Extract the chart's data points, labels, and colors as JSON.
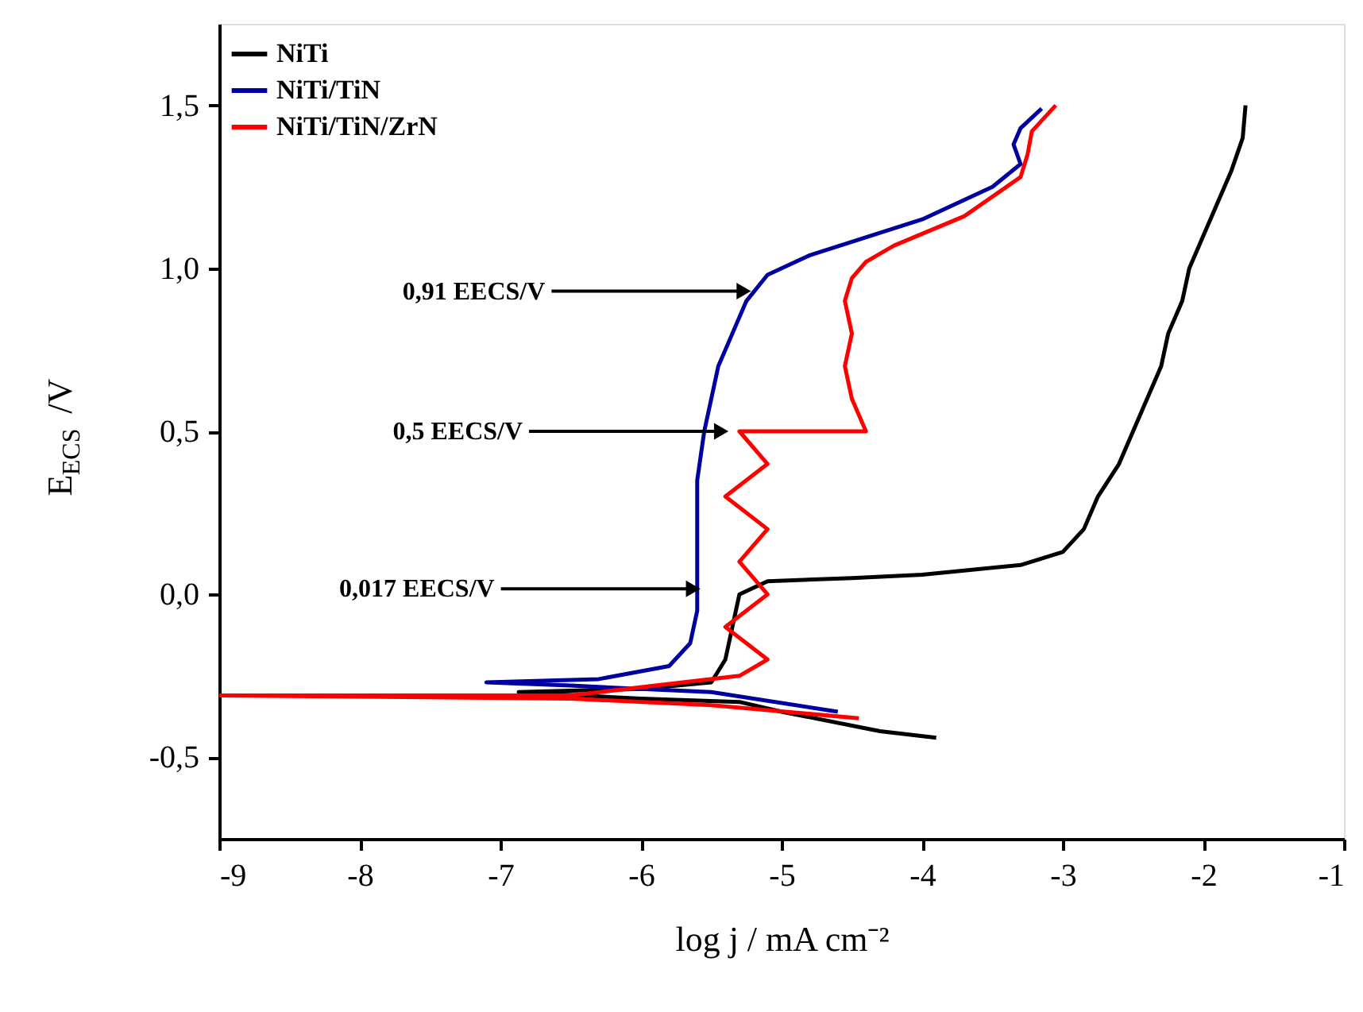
{
  "chart_data": {
    "type": "line",
    "xlabel": "log j / mA cm⁻²",
    "ylabel": "E$_{ECS}$ /V",
    "xlim": [
      -9,
      -1
    ],
    "xticks": [
      -9,
      -8,
      -7,
      -6,
      -5,
      -4,
      -3,
      -2,
      -1
    ],
    "ylim": [
      -0.75,
      1.75
    ],
    "yticks": [
      {
        "value": -0.5,
        "label": "-0,5"
      },
      {
        "value": 0,
        "label": "0,0"
      },
      {
        "value": 0.5,
        "label": "0,5"
      },
      {
        "value": 1,
        "label": "1,0"
      },
      {
        "value": 1.5,
        "label": "1,5"
      }
    ],
    "grid": false,
    "legend": "top left",
    "series": [
      {
        "name": "NiTi",
        "color": "#000000",
        "x": [
          -3.9,
          -4.3,
          -5.0,
          -5.3,
          -6.0,
          -6.87,
          -6.0,
          -5.5,
          -5.4,
          -5.35,
          -5.3,
          -5.1,
          -4.5,
          -4.0,
          -3.3,
          -3.0,
          -2.85,
          -2.75,
          -2.6,
          -2.5,
          -2.4,
          -2.3,
          -2.25,
          -2.15,
          -2.1,
          -2.0,
          -1.9,
          -1.8,
          -1.72,
          -1.7
        ],
        "values": [
          -0.44,
          -0.42,
          -0.36,
          -0.33,
          -0.32,
          -0.3,
          -0.29,
          -0.27,
          -0.2,
          -0.1,
          0.0,
          0.04,
          0.05,
          0.06,
          0.09,
          0.13,
          0.2,
          0.3,
          0.4,
          0.5,
          0.6,
          0.7,
          0.8,
          0.9,
          1.0,
          1.1,
          1.2,
          1.3,
          1.4,
          1.5
        ]
      },
      {
        "name": "NiTi/TiN",
        "color": "#0000a0",
        "x": [
          -4.6,
          -5.5,
          -6.5,
          -7.1,
          -6.3,
          -5.8,
          -5.65,
          -5.6,
          -5.6,
          -5.6,
          -5.6,
          -5.55,
          -5.5,
          -5.45,
          -5.35,
          -5.25,
          -5.1,
          -4.8,
          -4.0,
          -3.5,
          -3.3,
          -3.35,
          -3.3,
          -3.15
        ],
        "values": [
          -0.36,
          -0.3,
          -0.28,
          -0.27,
          -0.26,
          -0.22,
          -0.15,
          -0.05,
          0.05,
          0.2,
          0.35,
          0.5,
          0.6,
          0.7,
          0.8,
          0.9,
          0.98,
          1.04,
          1.15,
          1.25,
          1.32,
          1.38,
          1.43,
          1.49
        ]
      },
      {
        "name": "NiTi/TiN/ZrN",
        "color": "#ff0000",
        "x": [
          -4.45,
          -5.5,
          -6.5,
          -9.0,
          -6.5,
          -5.3,
          -5.1,
          -5.4,
          -5.1,
          -5.3,
          -5.1,
          -5.4,
          -5.1,
          -5.3,
          -4.4,
          -4.5,
          -4.55,
          -4.5,
          -4.55,
          -4.5,
          -4.4,
          -4.2,
          -3.7,
          -3.3,
          -3.25,
          -3.22,
          -3.05
        ],
        "values": [
          -0.38,
          -0.34,
          -0.32,
          -0.31,
          -0.31,
          -0.25,
          -0.2,
          -0.1,
          0.0,
          0.1,
          0.2,
          0.3,
          0.4,
          0.5,
          0.5,
          0.6,
          0.7,
          0.8,
          0.9,
          0.97,
          1.02,
          1.07,
          1.16,
          1.28,
          1.35,
          1.42,
          1.5
        ]
      }
    ],
    "annotations": [
      {
        "text": "0,91 EECS/V",
        "x": -5.19,
        "y": 0.93
      },
      {
        "text": "0,5 EECS/V",
        "x": -5.35,
        "y": 0.5
      },
      {
        "text": "0,017 EECS/V",
        "x": -5.55,
        "y": 0.017
      }
    ]
  }
}
